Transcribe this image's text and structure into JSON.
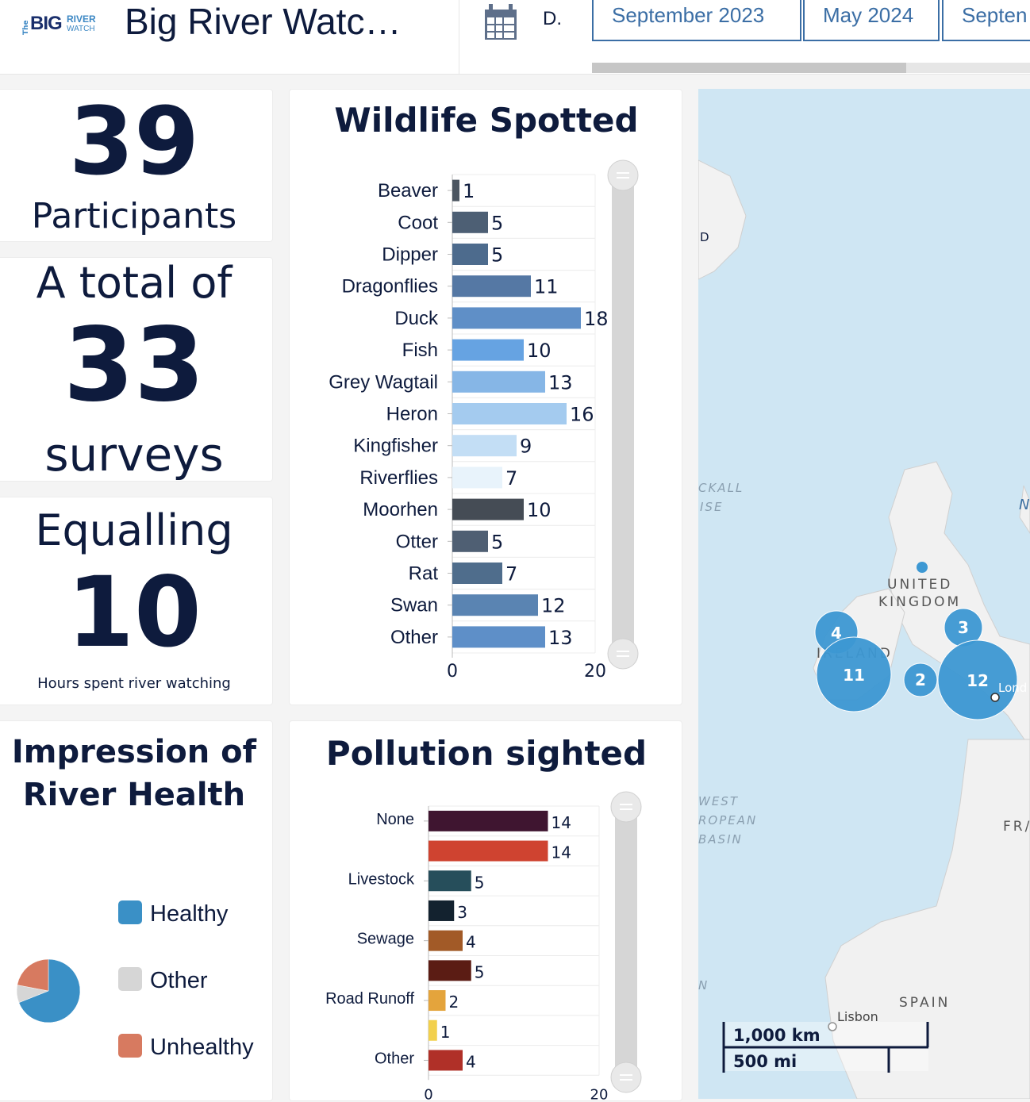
{
  "header": {
    "logo": {
      "the": "The",
      "big": "BIG",
      "river": "RIVER",
      "watch": "WATCH"
    },
    "title": "Big River Watc…",
    "date_label": "D.",
    "tabs": [
      "September 2023",
      "May 2024",
      "Septen"
    ]
  },
  "stats": {
    "participants_value": "39",
    "participants_label": "Participants",
    "surveys_prefix": "A total of",
    "surveys_value": "33",
    "surveys_label": "surveys",
    "hours_prefix": "Equalling",
    "hours_value": "10",
    "hours_label": "Hours spent river watching"
  },
  "wildlife": {
    "title": "Wildlife Spotted",
    "axis_ticks": [
      "0",
      "20"
    ]
  },
  "pollution": {
    "title": "Pollution sighted",
    "axis_ticks": [
      "0",
      "20"
    ]
  },
  "health": {
    "title_line1": "Impression of",
    "title_line2": "River Health",
    "legend": [
      "Healthy",
      "Other",
      "Unhealthy"
    ]
  },
  "map": {
    "labels": {
      "uk1": "UNITED",
      "uk2": "KINGDOM",
      "ireland": "IRELAND",
      "spain": "SPAIN",
      "lisbon": "Lisbon",
      "london": "Lond",
      "fr": "FR/",
      "d": "D",
      "rockall1": "CKALL",
      "rockall2": "ISE",
      "basin1": "WEST",
      "basin2": "ROPEAN",
      "basin3": "BASIN",
      "n": "N",
      "n2": "N"
    },
    "scale_km": "1,000 km",
    "scale_mi": "500 mi",
    "clusters": [
      "4",
      "11",
      "2",
      "3",
      "12"
    ]
  },
  "colors": {
    "navy": "#0e1b3d",
    "tab_blue": "#3b6ea5",
    "cluster": "#3d98d3"
  },
  "chart_data": [
    {
      "type": "bar",
      "title": "Wildlife Spotted",
      "orientation": "horizontal",
      "categories": [
        "Beaver",
        "Coot",
        "Dipper",
        "Dragonflies",
        "Duck",
        "Fish",
        "Grey Wagtail",
        "Heron",
        "Kingfisher",
        "Riverflies",
        "Moorhen",
        "Otter",
        "Rat",
        "Swan",
        "Other"
      ],
      "values": [
        1,
        5,
        5,
        11,
        18,
        10,
        13,
        16,
        9,
        7,
        10,
        5,
        7,
        12,
        13
      ],
      "colors": [
        "#4b5560",
        "#4d5f74",
        "#4d6b8d",
        "#5578a4",
        "#5f8fc7",
        "#66a3e2",
        "#86b6e6",
        "#a4cbef",
        "#c3def5",
        "#e8f3fb",
        "#454c55",
        "#4f5f73",
        "#4f6d8c",
        "#5a84b2",
        "#5e8fc8"
      ],
      "xlim": [
        0,
        20
      ],
      "xticks": [
        "0",
        "20"
      ],
      "grid": true
    },
    {
      "type": "bar",
      "title": "Pollution sighted",
      "orientation": "horizontal",
      "categories": [
        "None",
        "",
        "Livestock",
        "",
        "Sewage",
        "",
        "Road Runoff",
        "",
        "Other"
      ],
      "values": [
        14,
        14,
        5,
        3,
        4,
        5,
        2,
        1,
        4
      ],
      "colors": [
        "#3f1530",
        "#cf4330",
        "#264e5b",
        "#13222f",
        "#a25a27",
        "#5b1c14",
        "#e4a43c",
        "#f2d04d",
        "#b03028"
      ],
      "xlim": [
        0,
        20
      ],
      "xticks": [
        "0",
        "20"
      ],
      "grid": true
    },
    {
      "type": "pie",
      "title": "Impression of River Health",
      "categories": [
        "Healthy",
        "Other",
        "Unhealthy"
      ],
      "values": [
        69,
        9,
        22
      ],
      "colors": [
        "#3a90c6",
        "#d6d6d6",
        "#d77a60"
      ]
    }
  ]
}
